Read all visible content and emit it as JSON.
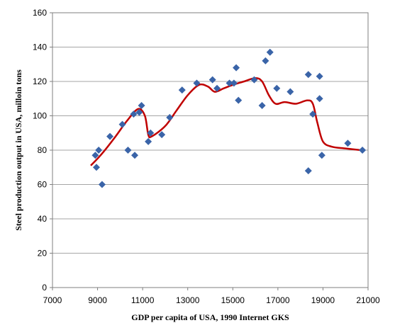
{
  "chart_data": {
    "type": "scatter",
    "xlabel": "GDP per capita of USA, 1990 Internet GKS",
    "ylabel": "Steel production output in USA, milloin tons",
    "xlim": [
      7000,
      21000
    ],
    "ylim": [
      0,
      160
    ],
    "x_ticks": [
      7000,
      9000,
      11000,
      13000,
      15000,
      17000,
      19000,
      21000
    ],
    "y_ticks": [
      0,
      20,
      40,
      60,
      80,
      100,
      120,
      140,
      160
    ],
    "grid": "horizontal",
    "colors": {
      "points": "#3a64a8",
      "curve": "#c00000",
      "grid": "#a6a6a6"
    },
    "series": [
      {
        "type": "scatter",
        "marker": "diamond",
        "x": [
          8900,
          8950,
          9050,
          9200,
          9550,
          10100,
          10350,
          10600,
          10650,
          10850,
          10950,
          11250,
          11350,
          11850,
          12200,
          12750,
          13400,
          14100,
          14300,
          14850,
          15050,
          15150,
          15250,
          15950,
          16300,
          16450,
          16650,
          16950,
          17550,
          18350,
          18350,
          18550,
          18850,
          18850,
          18950,
          20100,
          20750
        ],
        "y": [
          77,
          70,
          80,
          60,
          88,
          95,
          80,
          101,
          77,
          102,
          106,
          85,
          90,
          89,
          99,
          115,
          119,
          121,
          116,
          119,
          119,
          128,
          109,
          121,
          106,
          132,
          137,
          116,
          114,
          124,
          68,
          101,
          123,
          110,
          77,
          84,
          80
        ]
      },
      {
        "type": "line",
        "smooth": true,
        "x": [
          8700,
          9200,
          9800,
          10300,
          10800,
          11100,
          11250,
          11400,
          12000,
          12500,
          13000,
          13500,
          13900,
          14200,
          14600,
          15000,
          15500,
          16000,
          16300,
          16600,
          16900,
          17300,
          17800,
          18300,
          18550,
          18750,
          19000,
          19400,
          20000,
          20700
        ],
        "y": [
          71,
          78,
          88,
          97,
          104,
          100,
          89,
          88,
          94,
          103,
          112,
          118,
          117,
          114,
          116,
          118,
          120,
          122,
          120,
          112,
          107,
          108,
          107,
          109,
          107,
          96,
          85,
          82,
          81,
          80
        ]
      }
    ]
  }
}
